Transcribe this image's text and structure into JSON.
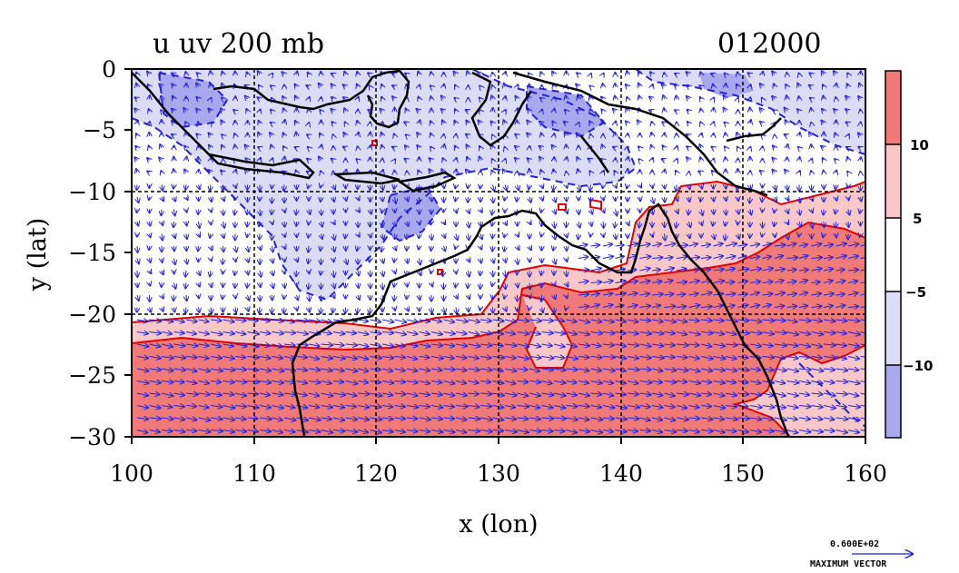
{
  "title": {
    "left": "u uv 200 mb",
    "right": "012000"
  },
  "axes": {
    "xlabel": "x (lon)",
    "ylabel": "y (lat)",
    "xticks": [
      "100",
      "110",
      "120",
      "130",
      "140",
      "150",
      "160"
    ],
    "yticks": [
      "0",
      "−5",
      "−10",
      "−15",
      "−20",
      "−25",
      "−30"
    ]
  },
  "colorbar": {
    "labels": [
      "10",
      "5",
      "−5",
      "−10"
    ],
    "colors": [
      "#f07a78",
      "#f8c8c8",
      "#ffffff",
      "#dcdcf6",
      "#a8a8ec"
    ]
  },
  "vector_legend": {
    "magnitude": "0.600E+02",
    "caption": "MAXIMUM VECTOR"
  },
  "chart_data": {
    "type": "map",
    "variable": "u wind component with uv vectors",
    "level_mb": 200,
    "time": "012000",
    "xlim": [
      100,
      160
    ],
    "ylim": [
      -30,
      0
    ],
    "contour_levels": [
      -10,
      -5,
      5,
      10
    ],
    "grid_lines": {
      "lon": [
        110,
        120,
        130,
        140,
        150
      ],
      "lat": [
        -10,
        -20
      ]
    }
  }
}
